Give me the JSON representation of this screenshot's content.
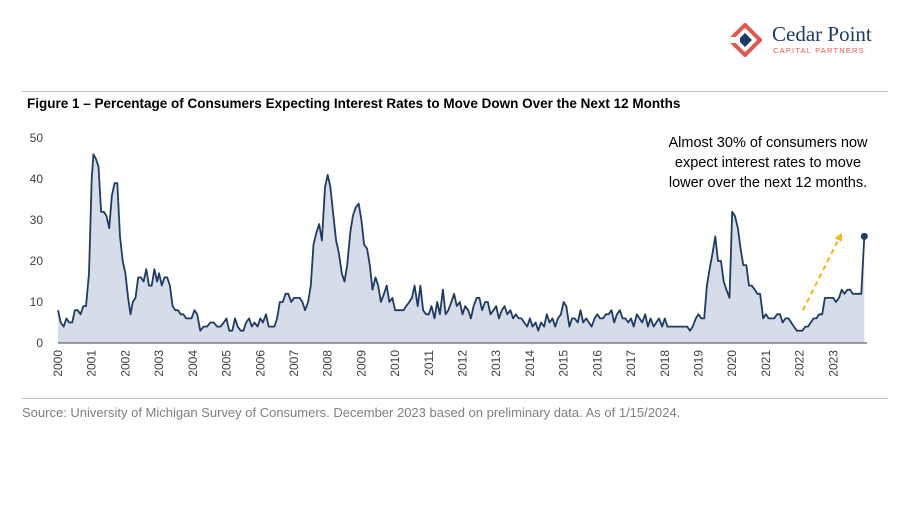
{
  "brand": {
    "name": "Cedar Point",
    "tagline": "CAPITAL PARTNERS",
    "colors": {
      "navy": "#1f3b63",
      "coral": "#e2574c"
    }
  },
  "figure": {
    "title": "Figure 1 – Percentage of Consumers Expecting Interest Rates to Move Down Over the Next 12 Months",
    "source": "Source: University of Michigan Survey of Consumers. December 2023 based on preliminary data. As of 1/15/2024."
  },
  "chart_data": {
    "type": "area",
    "title": "Percentage of Consumers Expecting Interest Rates to Move Down Over the Next 12 Months",
    "xlabel": "",
    "ylabel": "",
    "ylim": [
      0,
      50
    ],
    "y_ticks": [
      0,
      10,
      20,
      30,
      40,
      50
    ],
    "x_tick_labels": [
      "2000",
      "2001",
      "2002",
      "2003",
      "2004",
      "2005",
      "2006",
      "2007",
      "2008",
      "2009",
      "2010",
      "2011",
      "2012",
      "2013",
      "2014",
      "2015",
      "2016",
      "2017",
      "2018",
      "2019",
      "2020",
      "2021",
      "2022",
      "2023"
    ],
    "x_range": [
      2000.0,
      2024.0
    ],
    "grid": false,
    "colors": {
      "line": "#1f3b63",
      "fill": "#d6dde8",
      "arrow": "#f3b416"
    },
    "annotation": {
      "lines": [
        "Almost 30% of consumers now",
        "expect interest rates to move",
        "lower over the next 12 months."
      ],
      "arrow_from": {
        "x": 2022.1,
        "y": 8
      },
      "arrow_to": {
        "x": 2023.2,
        "y": 26
      }
    },
    "last_point": {
      "x": 2023.92,
      "y": 26
    },
    "series": [
      {
        "name": "Percent expecting rates down",
        "points": [
          [
            2000.0,
            8
          ],
          [
            2000.08,
            5
          ],
          [
            2000.17,
            4
          ],
          [
            2000.25,
            6
          ],
          [
            2000.33,
            5
          ],
          [
            2000.42,
            5
          ],
          [
            2000.5,
            8
          ],
          [
            2000.58,
            8
          ],
          [
            2000.67,
            7
          ],
          [
            2000.75,
            9
          ],
          [
            2000.83,
            9
          ],
          [
            2000.92,
            17
          ],
          [
            2001.0,
            40
          ],
          [
            2001.05,
            46
          ],
          [
            2001.12,
            45
          ],
          [
            2001.2,
            43
          ],
          [
            2001.28,
            32
          ],
          [
            2001.36,
            32
          ],
          [
            2001.44,
            31
          ],
          [
            2001.52,
            28
          ],
          [
            2001.6,
            36
          ],
          [
            2001.68,
            39
          ],
          [
            2001.76,
            39
          ],
          [
            2001.84,
            26
          ],
          [
            2001.92,
            20
          ],
          [
            2002.0,
            17
          ],
          [
            2002.08,
            11
          ],
          [
            2002.15,
            7
          ],
          [
            2002.22,
            10
          ],
          [
            2002.3,
            11
          ],
          [
            2002.38,
            16
          ],
          [
            2002.46,
            16
          ],
          [
            2002.54,
            15
          ],
          [
            2002.62,
            18
          ],
          [
            2002.7,
            14
          ],
          [
            2002.78,
            14
          ],
          [
            2002.86,
            18
          ],
          [
            2002.94,
            15
          ],
          [
            2003.0,
            17
          ],
          [
            2003.08,
            14
          ],
          [
            2003.16,
            16
          ],
          [
            2003.24,
            16
          ],
          [
            2003.32,
            14
          ],
          [
            2003.4,
            9
          ],
          [
            2003.48,
            8
          ],
          [
            2003.56,
            8
          ],
          [
            2003.64,
            7
          ],
          [
            2003.72,
            7
          ],
          [
            2003.8,
            6
          ],
          [
            2003.88,
            6
          ],
          [
            2003.96,
            6
          ],
          [
            2004.05,
            8
          ],
          [
            2004.13,
            7
          ],
          [
            2004.22,
            3
          ],
          [
            2004.32,
            4
          ],
          [
            2004.42,
            4
          ],
          [
            2004.52,
            5
          ],
          [
            2004.62,
            5
          ],
          [
            2004.72,
            4
          ],
          [
            2004.82,
            4
          ],
          [
            2004.92,
            5
          ],
          [
            2005.0,
            6
          ],
          [
            2005.08,
            3
          ],
          [
            2005.17,
            3
          ],
          [
            2005.25,
            6
          ],
          [
            2005.33,
            4
          ],
          [
            2005.42,
            3
          ],
          [
            2005.5,
            3
          ],
          [
            2005.58,
            5
          ],
          [
            2005.67,
            6
          ],
          [
            2005.75,
            4
          ],
          [
            2005.83,
            5
          ],
          [
            2005.92,
            4
          ],
          [
            2006.0,
            6
          ],
          [
            2006.08,
            5
          ],
          [
            2006.17,
            7
          ],
          [
            2006.25,
            4
          ],
          [
            2006.33,
            4
          ],
          [
            2006.42,
            4
          ],
          [
            2006.5,
            6
          ],
          [
            2006.58,
            10
          ],
          [
            2006.67,
            10
          ],
          [
            2006.75,
            12
          ],
          [
            2006.83,
            12
          ],
          [
            2006.92,
            10
          ],
          [
            2007.0,
            11
          ],
          [
            2007.08,
            11
          ],
          [
            2007.17,
            11
          ],
          [
            2007.25,
            10
          ],
          [
            2007.33,
            8
          ],
          [
            2007.42,
            10
          ],
          [
            2007.5,
            14
          ],
          [
            2007.58,
            24
          ],
          [
            2007.67,
            27
          ],
          [
            2007.75,
            29
          ],
          [
            2007.83,
            25
          ],
          [
            2007.92,
            38
          ],
          [
            2008.0,
            41
          ],
          [
            2008.08,
            38
          ],
          [
            2008.17,
            31
          ],
          [
            2008.25,
            25
          ],
          [
            2008.33,
            22
          ],
          [
            2008.42,
            17
          ],
          [
            2008.5,
            15
          ],
          [
            2008.58,
            19
          ],
          [
            2008.67,
            27
          ],
          [
            2008.75,
            31
          ],
          [
            2008.83,
            33
          ],
          [
            2008.92,
            34
          ],
          [
            2009.0,
            30
          ],
          [
            2009.08,
            24
          ],
          [
            2009.17,
            23
          ],
          [
            2009.25,
            19
          ],
          [
            2009.33,
            13
          ],
          [
            2009.42,
            16
          ],
          [
            2009.5,
            14
          ],
          [
            2009.58,
            10
          ],
          [
            2009.67,
            12
          ],
          [
            2009.75,
            14
          ],
          [
            2009.83,
            10
          ],
          [
            2009.92,
            11
          ],
          [
            2010.0,
            8
          ],
          [
            2010.08,
            8
          ],
          [
            2010.17,
            8
          ],
          [
            2010.25,
            8
          ],
          [
            2010.33,
            9
          ],
          [
            2010.42,
            10
          ],
          [
            2010.5,
            11
          ],
          [
            2010.58,
            14
          ],
          [
            2010.67,
            9
          ],
          [
            2010.75,
            14
          ],
          [
            2010.83,
            8
          ],
          [
            2010.92,
            7
          ],
          [
            2011.0,
            7
          ],
          [
            2011.08,
            9
          ],
          [
            2011.17,
            6
          ],
          [
            2011.25,
            10
          ],
          [
            2011.33,
            7
          ],
          [
            2011.42,
            13
          ],
          [
            2011.5,
            7
          ],
          [
            2011.58,
            8
          ],
          [
            2011.67,
            10
          ],
          [
            2011.75,
            12
          ],
          [
            2011.83,
            9
          ],
          [
            2011.92,
            10
          ],
          [
            2012.0,
            7
          ],
          [
            2012.08,
            9
          ],
          [
            2012.17,
            8
          ],
          [
            2012.25,
            6
          ],
          [
            2012.33,
            9
          ],
          [
            2012.42,
            11
          ],
          [
            2012.5,
            11
          ],
          [
            2012.58,
            8
          ],
          [
            2012.67,
            10
          ],
          [
            2012.75,
            10
          ],
          [
            2012.83,
            7
          ],
          [
            2012.92,
            8
          ],
          [
            2013.0,
            9
          ],
          [
            2013.08,
            6
          ],
          [
            2013.17,
            8
          ],
          [
            2013.25,
            9
          ],
          [
            2013.33,
            7
          ],
          [
            2013.42,
            8
          ],
          [
            2013.5,
            6
          ],
          [
            2013.58,
            7
          ],
          [
            2013.67,
            6
          ],
          [
            2013.75,
            6
          ],
          [
            2013.83,
            5
          ],
          [
            2013.92,
            4
          ],
          [
            2014.0,
            6
          ],
          [
            2014.08,
            4
          ],
          [
            2014.17,
            5
          ],
          [
            2014.25,
            3
          ],
          [
            2014.33,
            5
          ],
          [
            2014.42,
            4
          ],
          [
            2014.5,
            7
          ],
          [
            2014.58,
            5
          ],
          [
            2014.67,
            6
          ],
          [
            2014.75,
            4
          ],
          [
            2014.83,
            6
          ],
          [
            2014.92,
            7
          ],
          [
            2015.0,
            10
          ],
          [
            2015.08,
            9
          ],
          [
            2015.17,
            4
          ],
          [
            2015.25,
            6
          ],
          [
            2015.33,
            6
          ],
          [
            2015.42,
            5
          ],
          [
            2015.5,
            8
          ],
          [
            2015.58,
            5
          ],
          [
            2015.67,
            6
          ],
          [
            2015.75,
            5
          ],
          [
            2015.83,
            4
          ],
          [
            2015.92,
            6
          ],
          [
            2016.0,
            7
          ],
          [
            2016.08,
            6
          ],
          [
            2016.17,
            6
          ],
          [
            2016.25,
            7
          ],
          [
            2016.33,
            7
          ],
          [
            2016.42,
            8
          ],
          [
            2016.5,
            5
          ],
          [
            2016.58,
            7
          ],
          [
            2016.67,
            8
          ],
          [
            2016.75,
            6
          ],
          [
            2016.83,
            6
          ],
          [
            2016.92,
            5
          ],
          [
            2017.0,
            6
          ],
          [
            2017.08,
            4
          ],
          [
            2017.17,
            7
          ],
          [
            2017.25,
            6
          ],
          [
            2017.33,
            5
          ],
          [
            2017.42,
            7
          ],
          [
            2017.5,
            4
          ],
          [
            2017.58,
            6
          ],
          [
            2017.67,
            4
          ],
          [
            2017.75,
            5
          ],
          [
            2017.83,
            6
          ],
          [
            2017.92,
            4
          ],
          [
            2018.0,
            6
          ],
          [
            2018.08,
            4
          ],
          [
            2018.17,
            4
          ],
          [
            2018.25,
            4
          ],
          [
            2018.33,
            4
          ],
          [
            2018.42,
            4
          ],
          [
            2018.5,
            4
          ],
          [
            2018.58,
            4
          ],
          [
            2018.67,
            4
          ],
          [
            2018.75,
            3
          ],
          [
            2018.83,
            4
          ],
          [
            2018.92,
            6
          ],
          [
            2019.0,
            7
          ],
          [
            2019.08,
            6
          ],
          [
            2019.17,
            6
          ],
          [
            2019.25,
            14
          ],
          [
            2019.33,
            18
          ],
          [
            2019.42,
            22
          ],
          [
            2019.5,
            26
          ],
          [
            2019.58,
            20
          ],
          [
            2019.67,
            20
          ],
          [
            2019.75,
            15
          ],
          [
            2019.83,
            13
          ],
          [
            2019.92,
            11
          ],
          [
            2020.0,
            32
          ],
          [
            2020.08,
            31
          ],
          [
            2020.17,
            28
          ],
          [
            2020.25,
            23
          ],
          [
            2020.33,
            19
          ],
          [
            2020.42,
            19
          ],
          [
            2020.5,
            14
          ],
          [
            2020.58,
            14
          ],
          [
            2020.67,
            13
          ],
          [
            2020.75,
            12
          ],
          [
            2020.83,
            12
          ],
          [
            2020.92,
            6
          ],
          [
            2021.0,
            7
          ],
          [
            2021.08,
            6
          ],
          [
            2021.17,
            6
          ],
          [
            2021.25,
            6
          ],
          [
            2021.33,
            7
          ],
          [
            2021.42,
            7
          ],
          [
            2021.5,
            5
          ],
          [
            2021.58,
            6
          ],
          [
            2021.67,
            6
          ],
          [
            2021.75,
            5
          ],
          [
            2021.83,
            4
          ],
          [
            2021.92,
            3
          ],
          [
            2022.0,
            3
          ],
          [
            2022.08,
            3
          ],
          [
            2022.17,
            4
          ],
          [
            2022.25,
            4
          ],
          [
            2022.33,
            5
          ],
          [
            2022.42,
            6
          ],
          [
            2022.5,
            6
          ],
          [
            2022.58,
            7
          ],
          [
            2022.67,
            7
          ],
          [
            2022.75,
            11
          ],
          [
            2022.83,
            11
          ],
          [
            2022.92,
            11
          ],
          [
            2023.0,
            11
          ],
          [
            2023.08,
            10
          ],
          [
            2023.17,
            11
          ],
          [
            2023.25,
            13
          ],
          [
            2023.33,
            12
          ],
          [
            2023.42,
            13
          ],
          [
            2023.5,
            13
          ],
          [
            2023.58,
            12
          ],
          [
            2023.67,
            12
          ],
          [
            2023.75,
            12
          ],
          [
            2023.83,
            12
          ],
          [
            2023.92,
            26
          ]
        ]
      }
    ]
  }
}
